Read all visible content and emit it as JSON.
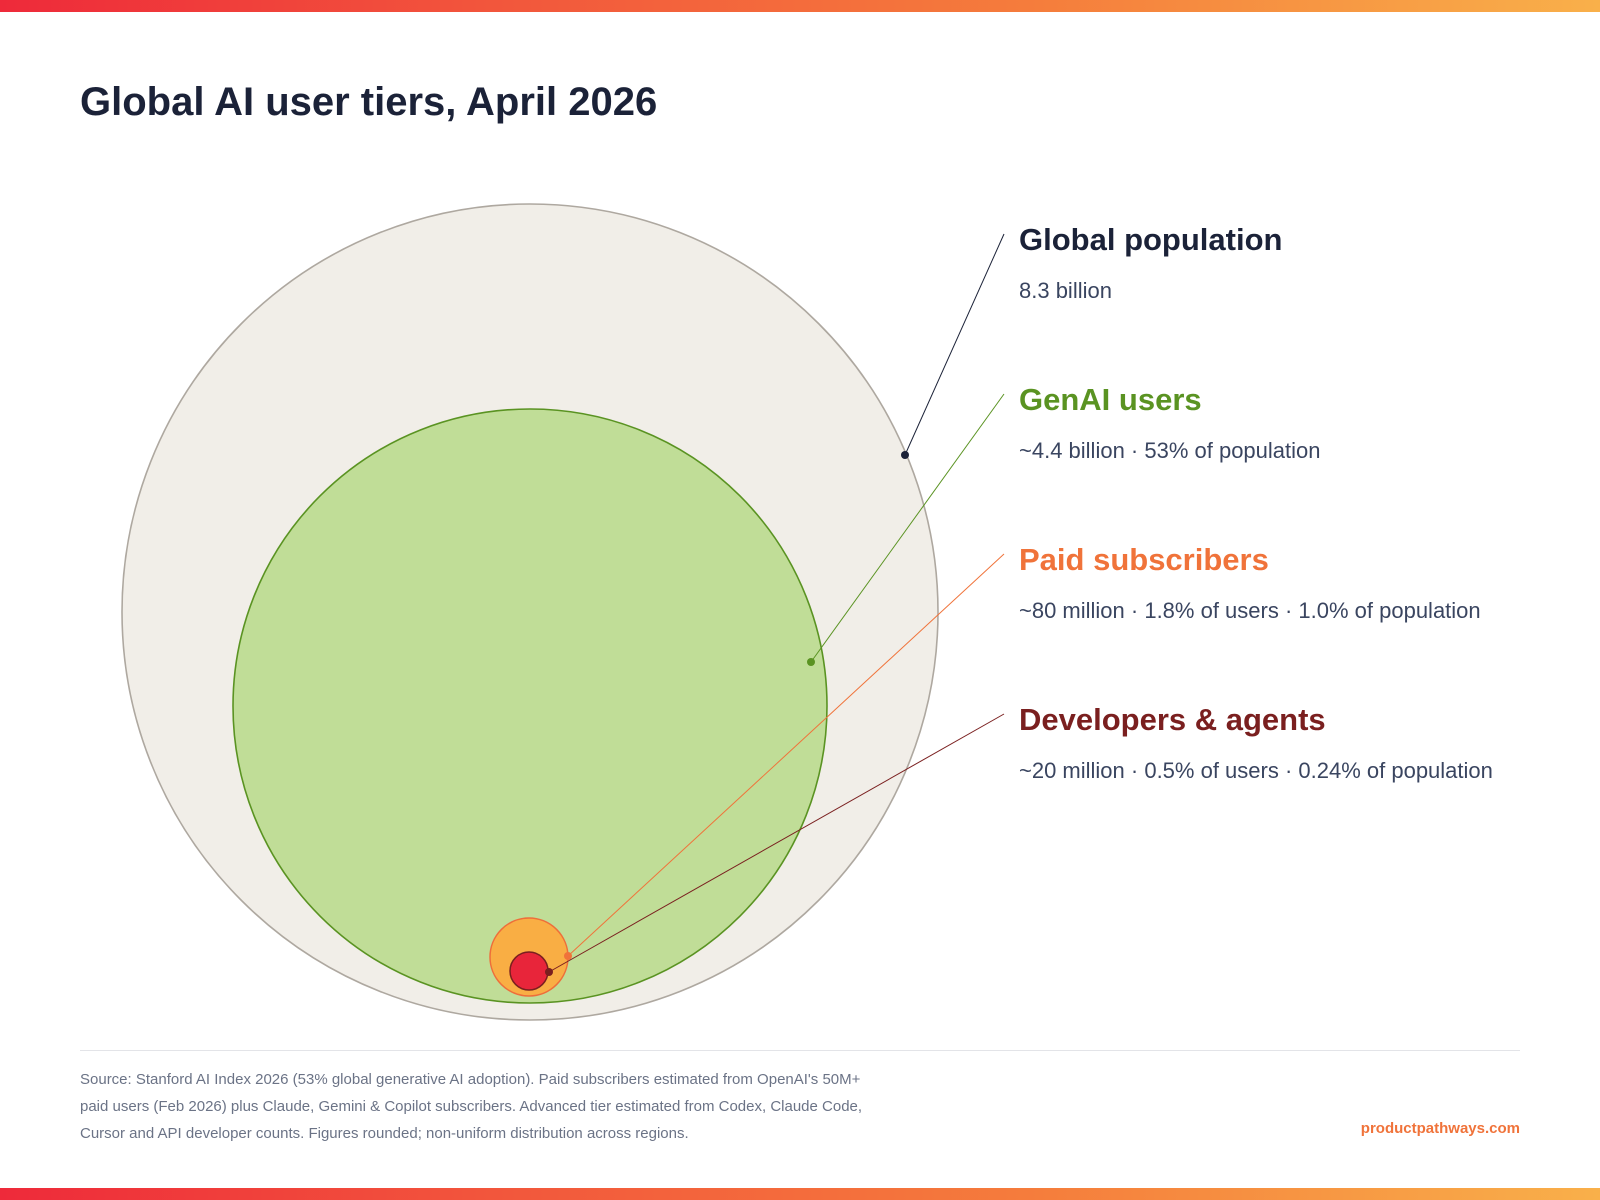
{
  "title": "Global AI user tiers, April 2026",
  "chart_data": {
    "type": "nested-circles",
    "title": "Global AI user tiers, April 2026",
    "tiers": [
      {
        "name": "Global population",
        "value": "8.3 billion",
        "stats": [
          "8.3 billion"
        ],
        "color": "#1b2238",
        "fill": "#f1eee8",
        "stroke": "#aea8a0"
      },
      {
        "name": "GenAI users",
        "value": "~4.4 billion",
        "stats": [
          "~4.4 billion",
          "53% of population"
        ],
        "color": "#5a9322",
        "fill": "#c0dd97",
        "stroke": "#5a9322"
      },
      {
        "name": "Paid subscribers",
        "value": "~80 million",
        "stats": [
          "~80 million",
          "1.8% of users",
          "1.0% of population"
        ],
        "color": "#f0733a",
        "fill": "#f9ae44",
        "stroke": "#ee6e3a"
      },
      {
        "name": "Developers & agents",
        "value": "~20 million",
        "stats": [
          "~20 million",
          "0.5% of users",
          "0.24% of population"
        ],
        "color": "#7a1f1f",
        "fill": "#e8253a",
        "stroke": "#7a1f1f"
      }
    ],
    "separator": "·"
  },
  "footer": {
    "source": "Source: Stanford AI Index 2026 (53% global generative AI adoption). Paid subscribers estimated from OpenAI's 50M+ paid users (Feb 2026) plus Claude, Gemini & Copilot subscribers. Advanced tier estimated from Codex, Claude Code, Cursor and API developer counts. Figures rounded; non-uniform distribution across regions.",
    "brand": "productpathways.com"
  }
}
